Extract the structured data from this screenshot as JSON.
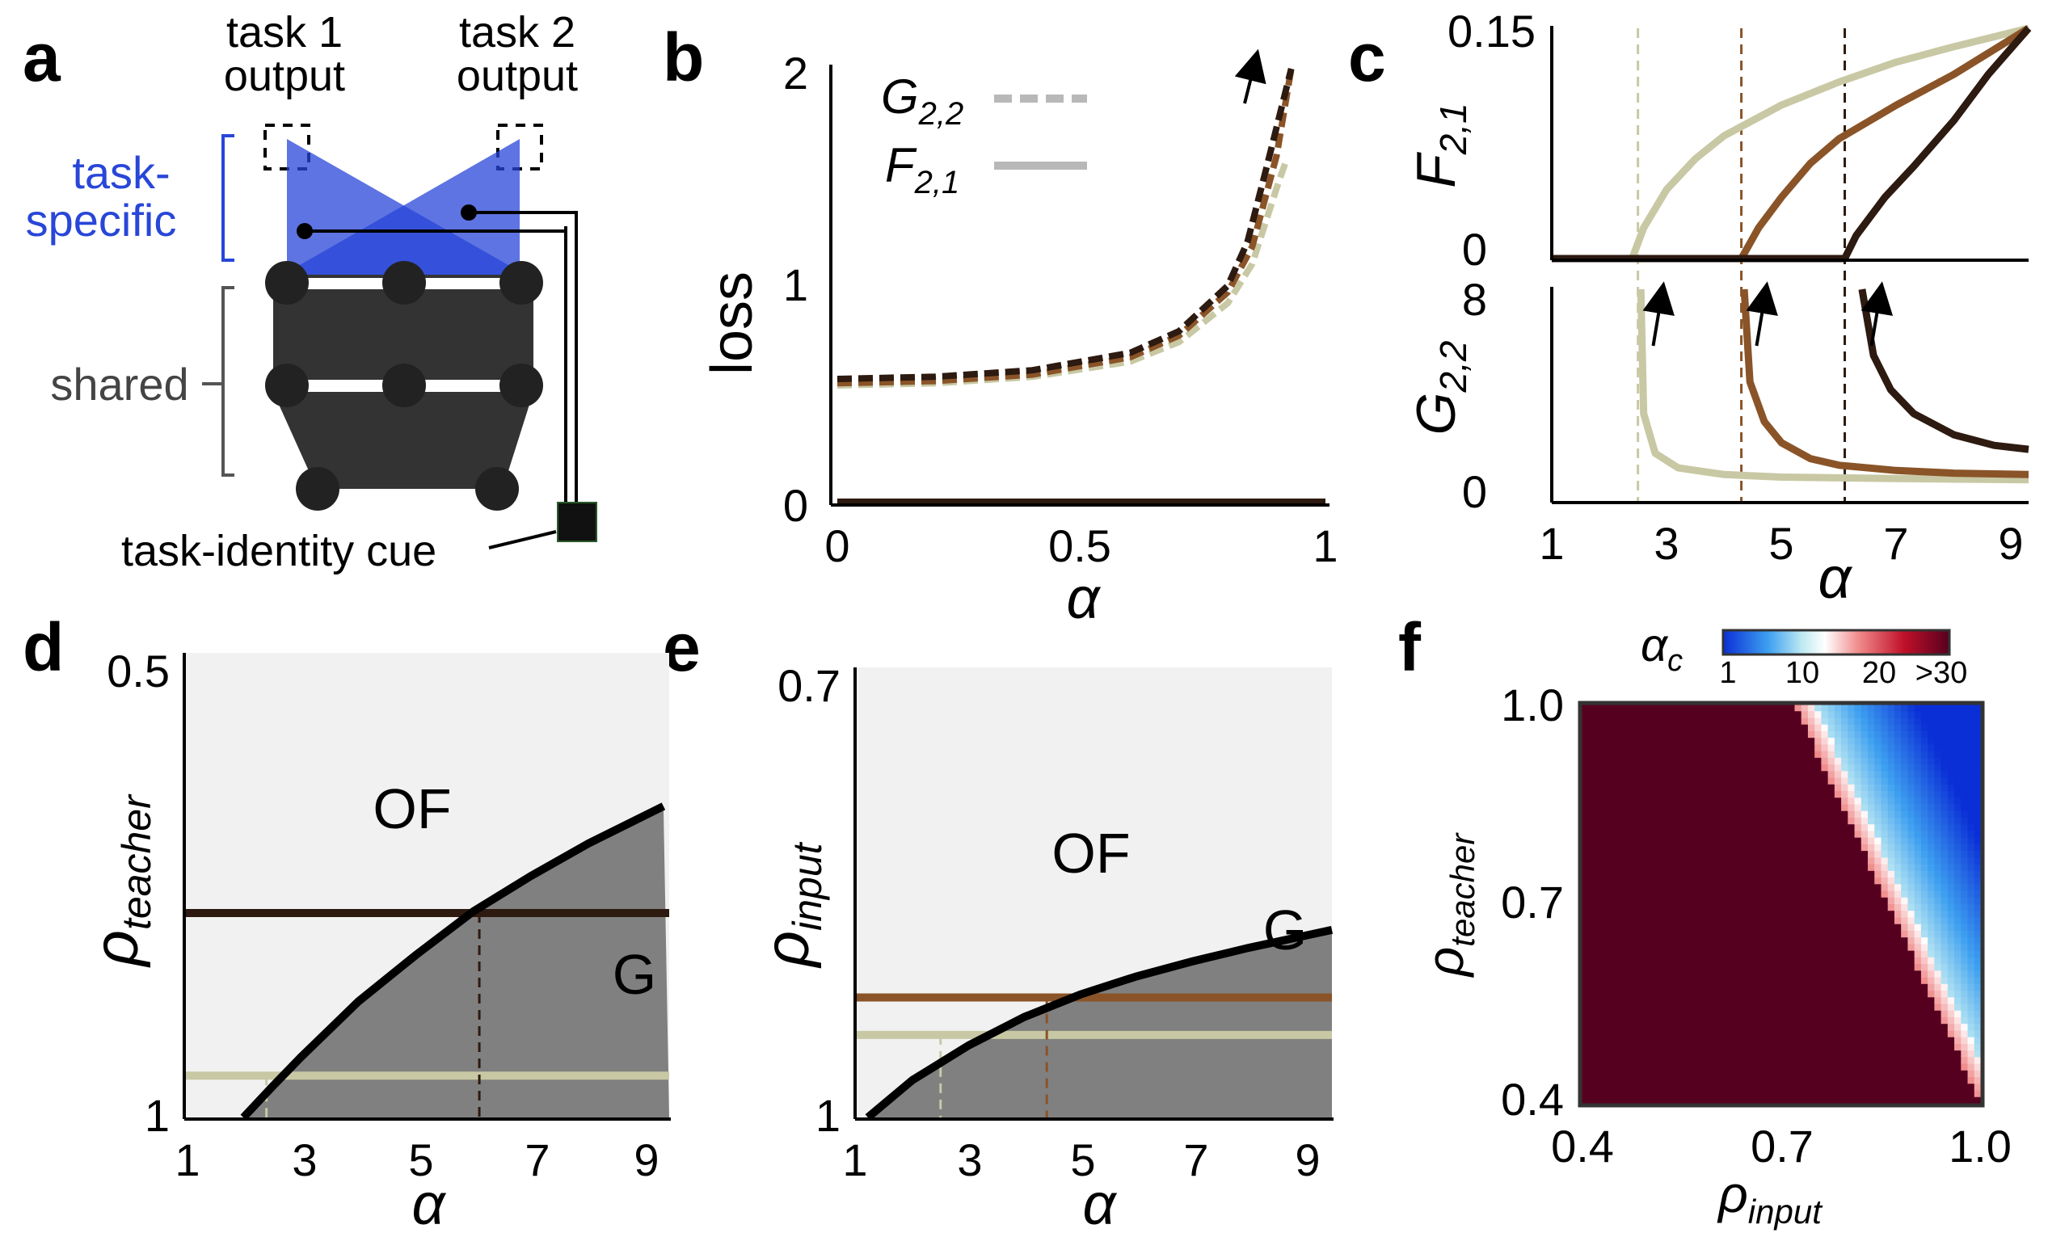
{
  "panel_labels": [
    "a",
    "b",
    "c",
    "d",
    "e",
    "f"
  ],
  "schematic": {
    "task1_output": [
      "task 1",
      "output"
    ],
    "task2_output": [
      "task 2",
      "output"
    ],
    "task_specific": [
      "task-",
      "specific"
    ],
    "shared": "shared",
    "cue": "task-identity cue",
    "colors": {
      "task_specific": "#2846d8",
      "shared": "#333333"
    }
  },
  "chart_data": [
    {
      "panel": "b",
      "type": "line",
      "xlabel": "α",
      "ylabel": "loss",
      "xlim": [
        0,
        1
      ],
      "ylim": [
        0,
        2
      ],
      "xticks": [
        "0",
        "0.5",
        "1"
      ],
      "yticks": [
        "0",
        "1",
        "2"
      ],
      "legend": [
        {
          "label": "G",
          "sub": "2,2",
          "style": "dashed"
        },
        {
          "label": "F",
          "sub": "2,1",
          "style": "solid"
        }
      ],
      "series": [
        {
          "name": "G2,2 (light)",
          "color": "#c8c8a4",
          "style": "dashed",
          "x": [
            0,
            0.2,
            0.4,
            0.6,
            0.7,
            0.8,
            0.85,
            0.9,
            0.92
          ],
          "y": [
            0.54,
            0.55,
            0.58,
            0.65,
            0.74,
            0.92,
            1.1,
            1.45,
            1.58
          ]
        },
        {
          "name": "G2,2 (medium)",
          "color": "#8a5428",
          "style": "dashed",
          "x": [
            0,
            0.2,
            0.4,
            0.6,
            0.7,
            0.8,
            0.85,
            0.9,
            0.93
          ],
          "y": [
            0.55,
            0.56,
            0.59,
            0.67,
            0.77,
            0.97,
            1.18,
            1.6,
            2.0
          ]
        },
        {
          "name": "G2,2 (dark)",
          "color": "#2d1a10",
          "style": "dashed",
          "x": [
            0,
            0.2,
            0.4,
            0.6,
            0.7,
            0.8,
            0.84,
            0.88,
            0.93
          ],
          "y": [
            0.57,
            0.58,
            0.61,
            0.69,
            0.79,
            1.0,
            1.2,
            1.55,
            2.0
          ]
        },
        {
          "name": "F2,1",
          "color": "#2d1a10",
          "style": "solid",
          "x": [
            0,
            1
          ],
          "y": [
            0,
            0
          ]
        }
      ]
    },
    {
      "panel": "c",
      "type": "line",
      "xlabel": "α",
      "xlim": [
        1,
        9.3
      ],
      "xticks": [
        "1",
        "3",
        "5",
        "7",
        "9"
      ],
      "top": {
        "ylabel": "F",
        "ysub": "2,1",
        "ylim": [
          0,
          0.15
        ],
        "yticks": [
          "0",
          "0.15"
        ],
        "series": [
          {
            "name": "light",
            "color": "#c8c8a4",
            "x": [
              1,
              2.4,
              2.6,
              3,
              3.5,
              4,
              5,
              6,
              7,
              8,
              9.3
            ],
            "y": [
              0,
              0,
              0.02,
              0.045,
              0.065,
              0.08,
              0.1,
              0.115,
              0.128,
              0.138,
              0.15
            ]
          },
          {
            "name": "medium",
            "color": "#8a5428",
            "x": [
              1,
              4.3,
              4.6,
              5,
              5.5,
              6,
              7,
              8,
              9.3
            ],
            "y": [
              0,
              0,
              0.02,
              0.04,
              0.062,
              0.078,
              0.1,
              0.12,
              0.15
            ]
          },
          {
            "name": "dark",
            "color": "#2d1a10",
            "x": [
              1,
              6.1,
              6.3,
              6.8,
              7.3,
              8,
              8.6,
              9.3
            ],
            "y": [
              0,
              0,
              0.015,
              0.04,
              0.06,
              0.09,
              0.12,
              0.15
            ]
          }
        ]
      },
      "bottom": {
        "ylabel": "G",
        "ysub": "2,2",
        "ylim": [
          0,
          8
        ],
        "yticks": [
          "0",
          "8"
        ],
        "series": [
          {
            "name": "light",
            "color": "#c8c8a4",
            "x": [
              2.55,
              2.6,
              2.8,
              3.2,
              4,
              5,
              7,
              9.3
            ],
            "y": [
              8,
              3.3,
              1.8,
              1.25,
              1.0,
              0.9,
              0.85,
              0.8
            ]
          },
          {
            "name": "medium",
            "color": "#8a5428",
            "x": [
              4.35,
              4.45,
              4.7,
              5,
              5.5,
              6,
              7,
              8,
              9.3
            ],
            "y": [
              8,
              4.5,
              3.0,
              2.2,
              1.6,
              1.35,
              1.15,
              1.05,
              1.0
            ]
          },
          {
            "name": "dark",
            "color": "#2d1a10",
            "x": [
              6.4,
              6.6,
              6.9,
              7.3,
              8,
              8.7,
              9.3
            ],
            "y": [
              8,
              5.5,
              4.2,
              3.3,
              2.5,
              2.1,
              1.95
            ]
          }
        ]
      },
      "vlines": [
        {
          "x": 2.5,
          "color": "#c8c8a4"
        },
        {
          "x": 4.3,
          "color": "#8a5428"
        },
        {
          "x": 6.1,
          "color": "#2d1a10"
        }
      ],
      "arrows_x": [
        2.85,
        4.65,
        6.65
      ]
    },
    {
      "panel": "d",
      "type": "area",
      "xlabel": "α",
      "ylabel": "ρ",
      "ysub": "teacher",
      "xlim": [
        1,
        9.4
      ],
      "ylim_labels": [
        "1",
        "0.5"
      ],
      "xticks": [
        "1",
        "3",
        "5",
        "7",
        "9"
      ],
      "regions": [
        "OF",
        "G"
      ],
      "boundary": {
        "x": [
          2.0,
          2.5,
          3,
          4,
          5,
          6,
          7,
          8,
          9.3
        ],
        "rho": [
          1.0,
          0.967,
          0.935,
          0.875,
          0.825,
          0.778,
          0.74,
          0.705,
          0.665
        ]
      },
      "hlines": [
        {
          "rho": 0.955,
          "color": "#c8c8a4",
          "crossing": 2.4
        },
        {
          "rho": 0.78,
          "color": "#2d1a10",
          "crossing": 6.1
        }
      ]
    },
    {
      "panel": "e",
      "type": "area",
      "xlabel": "α",
      "ylabel": "ρ",
      "ysub": "input",
      "xlim": [
        1,
        9.5
      ],
      "ylim_labels": [
        "1",
        "0.7"
      ],
      "xticks": [
        "1",
        "3",
        "5",
        "7",
        "9"
      ],
      "regions": [
        "OF",
        "G"
      ],
      "boundary": {
        "x": [
          1.2,
          2,
          3,
          4,
          5,
          6,
          7,
          8,
          9.5
        ],
        "rho": [
          1.0,
          0.975,
          0.952,
          0.933,
          0.918,
          0.906,
          0.896,
          0.887,
          0.875
        ]
      },
      "hlines": [
        {
          "rho": 0.945,
          "color": "#c8c8a4",
          "crossing": 2.5
        },
        {
          "rho": 0.92,
          "color": "#8a5428",
          "crossing": 4.4
        }
      ]
    },
    {
      "panel": "f",
      "type": "heatmap",
      "xlabel": "ρ",
      "xsub": "input",
      "ylabel": "ρ",
      "ysub": "teacher",
      "xticks": [
        "0.4",
        "0.7",
        "1.0"
      ],
      "yticks": [
        "0.4",
        "0.7",
        "1.0"
      ],
      "xlim": [
        0.4,
        1.0
      ],
      "ylim": [
        0.4,
        1.0
      ],
      "colorbar": {
        "label": "α",
        "sub": "c",
        "ticks": [
          "1",
          "10",
          "20",
          ">30"
        ],
        "range": [
          1,
          30
        ]
      },
      "critical_line": {
        "rho_input_at_top": 0.72,
        "rho_input_at_bottom": 1.0
      }
    }
  ]
}
